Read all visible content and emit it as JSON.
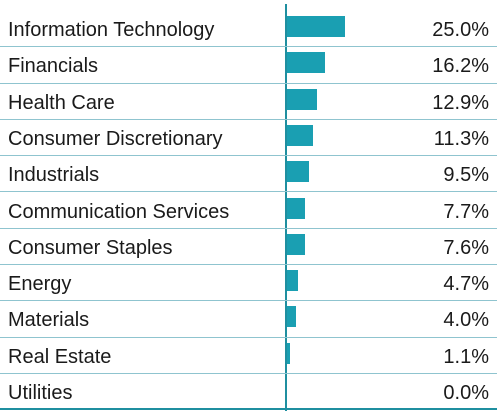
{
  "chart_data": {
    "type": "bar",
    "orientation": "horizontal",
    "categories": [
      "Information Technology",
      "Financials",
      "Health Care",
      "Consumer Discretionary",
      "Industrials",
      "Communication Services",
      "Consumer Staples",
      "Energy",
      "Materials",
      "Real Estate",
      "Utilities"
    ],
    "values": [
      25.0,
      16.2,
      12.9,
      11.3,
      9.5,
      7.7,
      7.6,
      4.7,
      4.0,
      1.1,
      0.0
    ],
    "value_labels": [
      "25.0%",
      "16.2%",
      "12.9%",
      "11.3%",
      "9.5%",
      "7.7%",
      "7.6%",
      "4.7%",
      "4.0%",
      "1.1%",
      "0.0%"
    ],
    "title": "",
    "xlabel": "",
    "ylabel": "",
    "xlim": [
      0,
      25.0
    ],
    "grid": false,
    "legend": "none",
    "colors": {
      "bar": "#1a9fb2",
      "axis": "#1f8fa0",
      "separator": "#8fc4cf",
      "text": "#1a1a1a"
    }
  }
}
